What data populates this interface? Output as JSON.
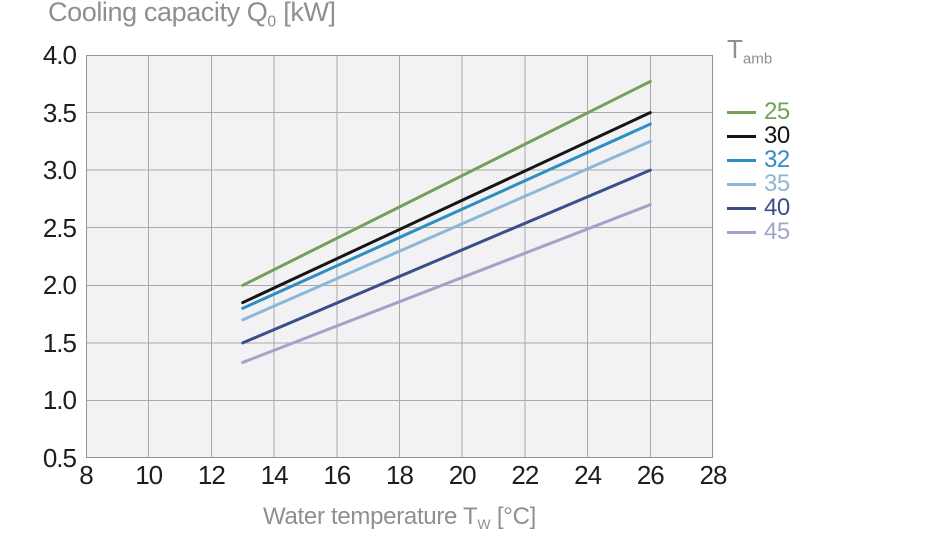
{
  "title": {
    "main": "Cooling capacity Q",
    "sub": "0",
    "unit": " [kW]"
  },
  "x_axis_label": {
    "main": "Water temperature T",
    "sub": "W",
    "unit": " [°C]"
  },
  "legend": {
    "title_main": "T",
    "title_sub": "amb"
  },
  "colors": {
    "title_text": "#8d8f92",
    "tick_text": "#1d1d1b",
    "plot_bg": "#f2f2f4",
    "gridline": "#a9a9ab",
    "plot_border": "#939395"
  },
  "chart_data": {
    "type": "line",
    "title": "Cooling capacity Q0 [kW]",
    "xlabel": "Water temperature TW [°C]",
    "ylabel": "Cooling capacity Q0 [kW]",
    "legend_title": "Tamb",
    "legend_position": "right",
    "grid": true,
    "xlim": [
      8,
      28
    ],
    "ylim": [
      0.5,
      4.0
    ],
    "x_ticks": [
      8,
      10,
      12,
      14,
      16,
      18,
      20,
      22,
      24,
      26,
      28
    ],
    "y_ticks": [
      0.5,
      1.0,
      1.5,
      2.0,
      2.5,
      3.0,
      3.5,
      4.0
    ],
    "x": [
      13,
      26
    ],
    "line_width": 3,
    "series": [
      {
        "name": "25",
        "color": "#73a159",
        "values": [
          2.0,
          3.77
        ]
      },
      {
        "name": "30",
        "color": "#151515",
        "values": [
          1.85,
          3.5
        ]
      },
      {
        "name": "32",
        "color": "#2f8dc2",
        "values": [
          1.8,
          3.4
        ]
      },
      {
        "name": "35",
        "color": "#8db7d7",
        "values": [
          1.7,
          3.25
        ]
      },
      {
        "name": "40",
        "color": "#3a4e8c",
        "values": [
          1.5,
          3.0
        ]
      },
      {
        "name": "45",
        "color": "#a0a4c6",
        "values": [
          1.33,
          2.7
        ]
      }
    ]
  }
}
